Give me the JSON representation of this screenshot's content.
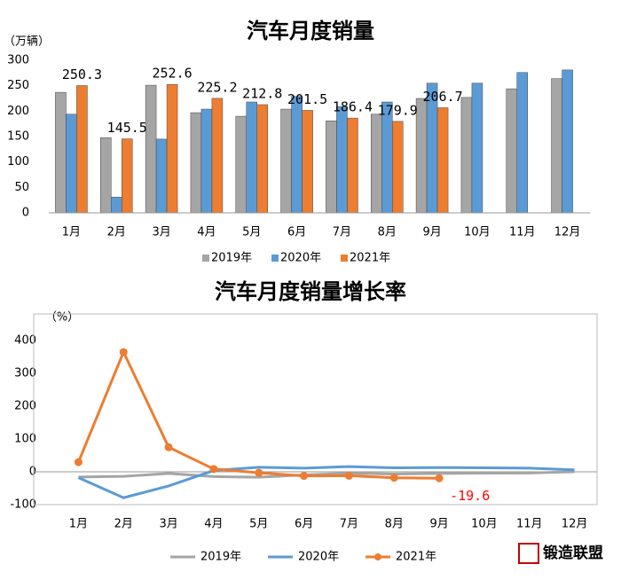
{
  "chart_data": [
    {
      "type": "bar",
      "title": "汽车月度销量",
      "y_unit": "（万辆）",
      "categories": [
        "1月",
        "2月",
        "3月",
        "4月",
        "5月",
        "6月",
        "7月",
        "8月",
        "9月",
        "10月",
        "11月",
        "12月"
      ],
      "series": [
        {
          "name": "2019年",
          "color": "#a5a5a5",
          "values": [
            237,
            148,
            251,
            197,
            190,
            204,
            181,
            194,
            225,
            227,
            244,
            264
          ]
        },
        {
          "name": "2020年",
          "color": "#5b9bd5",
          "values": [
            194,
            31,
            145,
            204,
            218,
            229,
            209,
            218,
            255,
            255,
            276,
            281
          ]
        },
        {
          "name": "2021年",
          "color": "#ed7d31",
          "values": [
            250.3,
            145.5,
            252.6,
            225.2,
            212.8,
            201.5,
            186.4,
            179.9,
            206.7,
            null,
            null,
            null
          ]
        }
      ],
      "ylim": [
        0,
        300
      ],
      "yticks": [
        0,
        50,
        100,
        150,
        200,
        250,
        300
      ],
      "grid": false,
      "labeled_series": 2
    },
    {
      "type": "line",
      "title": "汽车月度销量增长率",
      "y_unit": "（%）",
      "categories": [
        "1月",
        "2月",
        "3月",
        "4月",
        "5月",
        "6月",
        "7月",
        "8月",
        "9月",
        "10月",
        "11月",
        "12月"
      ],
      "series": [
        {
          "name": "2019年",
          "color": "#a5a5a5",
          "values": [
            -15.8,
            -13.8,
            -5.2,
            -14.6,
            -16.4,
            -9.6,
            -4.3,
            -6.9,
            -5.2,
            -4,
            -3.6,
            0.1
          ]
        },
        {
          "name": "2020年",
          "color": "#5b9bd5",
          "values": [
            -18,
            -79,
            -43,
            4,
            14,
            11,
            16,
            12,
            13,
            12,
            11,
            6
          ]
        },
        {
          "name": "2021年",
          "color": "#ed7d31",
          "values": [
            29.5,
            365,
            74.9,
            8.6,
            -3,
            -12.4,
            -11.9,
            -18.1,
            -19.6,
            null,
            null,
            null
          ],
          "markers": true
        }
      ],
      "ylim": [
        -100,
        400
      ],
      "yticks": [
        -100,
        0,
        100,
        200,
        300,
        400
      ],
      "grid": false,
      "labeled_point": [
        2,
        8
      ]
    }
  ],
  "logo": "锻造联盟"
}
